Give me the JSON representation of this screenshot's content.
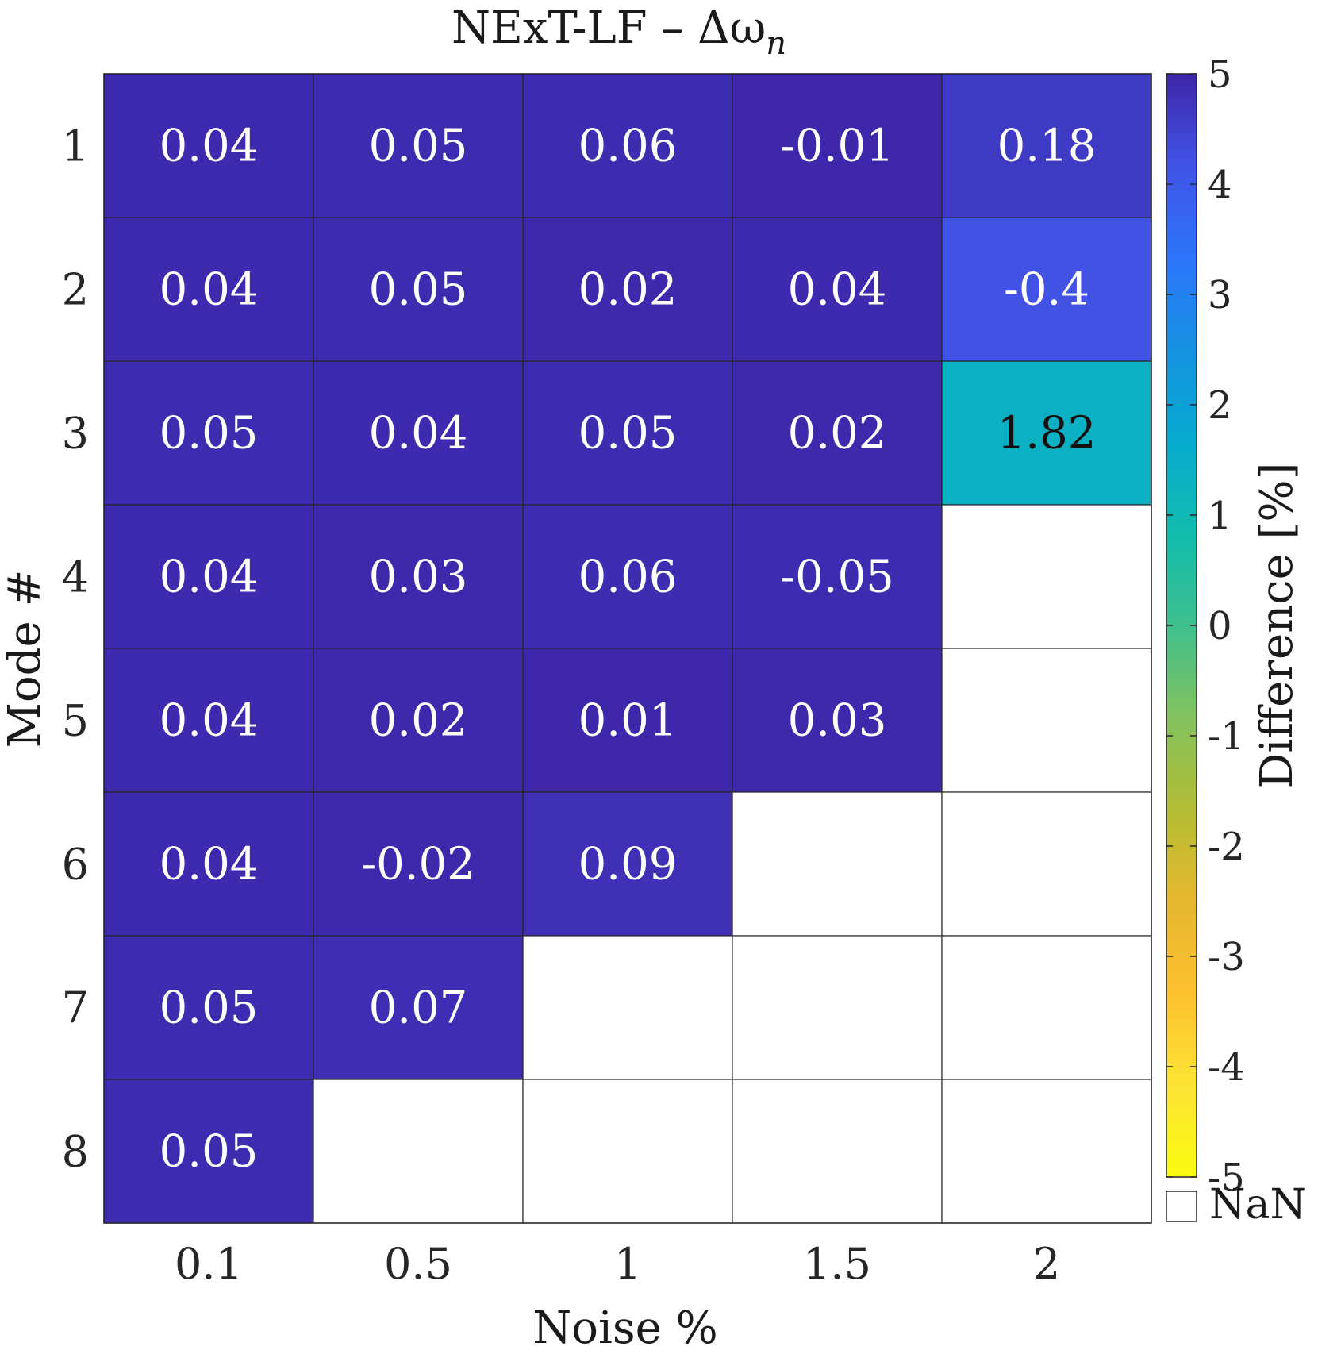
{
  "chart_data": {
    "type": "heatmap",
    "title": "NExT-LF – Δω",
    "title_subscript": "n",
    "xlabel": "Noise %",
    "ylabel": "Mode #",
    "x_categories": [
      "0.1",
      "0.5",
      "1",
      "1.5",
      "2"
    ],
    "y_categories": [
      "1",
      "2",
      "3",
      "4",
      "5",
      "6",
      "7",
      "8"
    ],
    "values": [
      [
        0.04,
        0.05,
        0.06,
        -0.01,
        0.18
      ],
      [
        0.04,
        0.05,
        0.02,
        0.04,
        -0.4
      ],
      [
        0.05,
        0.04,
        0.05,
        0.02,
        1.82
      ],
      [
        0.04,
        0.03,
        0.06,
        -0.05,
        null
      ],
      [
        0.04,
        0.02,
        0.01,
        0.03,
        null
      ],
      [
        0.04,
        -0.02,
        0.09,
        null,
        null
      ],
      [
        0.05,
        0.07,
        null,
        null,
        null
      ],
      [
        0.05,
        null,
        null,
        null,
        null
      ]
    ],
    "value_labels": [
      [
        "0.04",
        "0.05",
        "0.06",
        "-0.01",
        "0.18"
      ],
      [
        "0.04",
        "0.05",
        "0.02",
        "0.04",
        "-0.4"
      ],
      [
        "0.05",
        "0.04",
        "0.05",
        "0.02",
        "1.82"
      ],
      [
        "0.04",
        "0.03",
        "0.06",
        "-0.05",
        ""
      ],
      [
        "0.04",
        "0.02",
        "0.01",
        "0.03",
        ""
      ],
      [
        "0.04",
        "-0.02",
        "0.09",
        "",
        ""
      ],
      [
        "0.05",
        "0.07",
        "",
        "",
        ""
      ],
      [
        "0.05",
        "",
        "",
        "",
        ""
      ]
    ],
    "colorbar": {
      "label": "Difference [%]",
      "range": [
        -5,
        5
      ],
      "ticks": [
        5,
        4,
        3,
        2,
        1,
        0,
        -1,
        -2,
        -3,
        -4,
        -5
      ],
      "tick_labels": [
        "5",
        "4",
        "3",
        "2",
        "1",
        "0",
        "-1",
        "-2",
        "-3",
        "-4",
        "-5"
      ],
      "colormap": "parula",
      "nan_label": "NaN",
      "nan_color": "#ffffff"
    },
    "grid": true,
    "legend": "none"
  }
}
